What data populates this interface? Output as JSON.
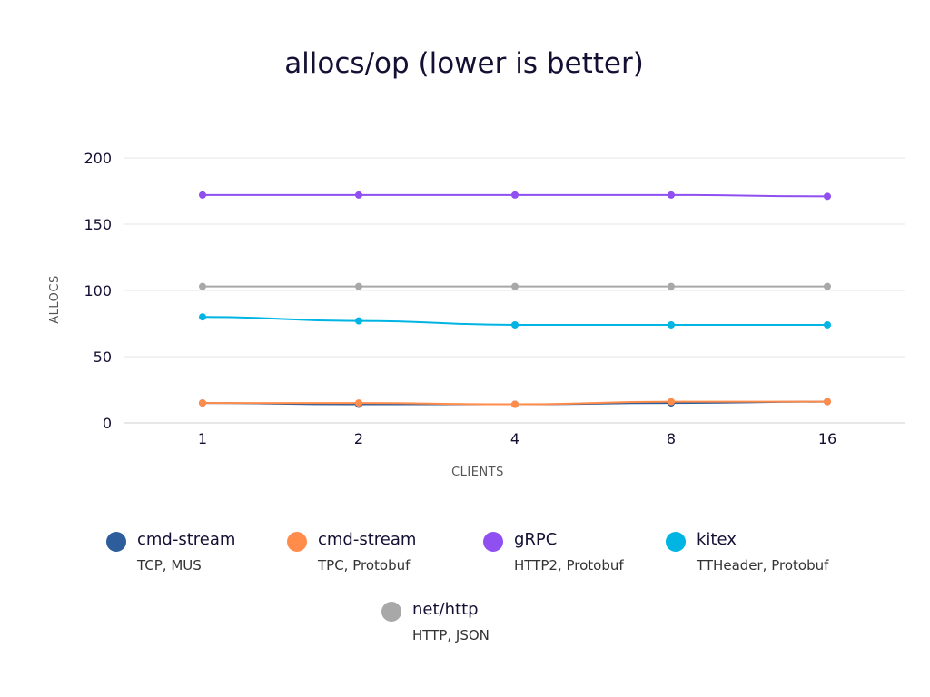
{
  "chart_data": {
    "type": "line",
    "title": "allocs/op (lower is better)",
    "xlabel": "CLIENTS",
    "ylabel": "ALLOCS",
    "categories": [
      "1",
      "2",
      "4",
      "8",
      "16"
    ],
    "ylim": [
      0,
      200
    ],
    "yticks": [
      0,
      50,
      100,
      150,
      200
    ],
    "grid": true,
    "legend_position": "bottom",
    "series": [
      {
        "name": "cmd-stream",
        "subtitle": "TCP, MUS",
        "color": "#2d5d9a",
        "values": [
          15,
          14,
          14,
          15,
          16
        ]
      },
      {
        "name": "cmd-stream",
        "subtitle": "TPC, Protobuf",
        "color": "#ff8c4b",
        "values": [
          15,
          15,
          14,
          16,
          16
        ]
      },
      {
        "name": "gRPC",
        "subtitle": "HTTP2, Protobuf",
        "color": "#8f4ff1",
        "values": [
          172,
          172,
          172,
          172,
          171
        ]
      },
      {
        "name": "kitex",
        "subtitle": "TTHeader, Protobuf",
        "color": "#00b4e3",
        "values": [
          80,
          77,
          74,
          74,
          74
        ]
      },
      {
        "name": "net/http",
        "subtitle": "HTTP, JSON",
        "color": "#a8a8a8",
        "values": [
          103,
          103,
          103,
          103,
          103
        ]
      }
    ]
  }
}
